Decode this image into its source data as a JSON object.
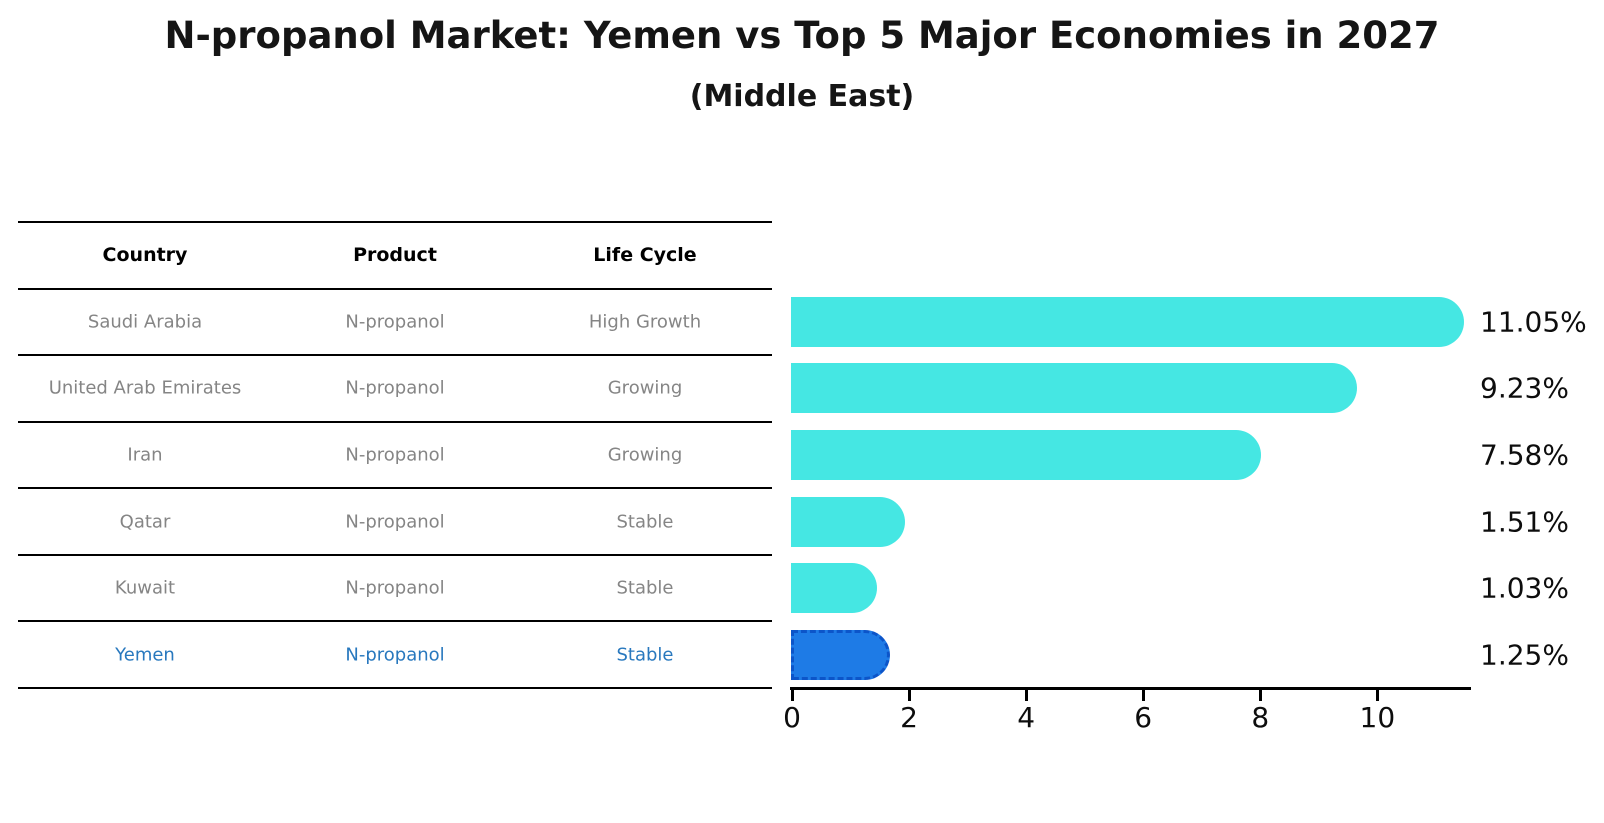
{
  "title": "N-propanol Market: Yemen vs Top 5 Major Economies in 2027",
  "subtitle": "(Middle East)",
  "table": {
    "headers": [
      "Country",
      "Product",
      "Life Cycle"
    ],
    "rows": [
      {
        "country": "Saudi Arabia",
        "product": "N-propanol",
        "life_cycle": "High Growth",
        "highlight": false
      },
      {
        "country": "United Arab Emirates",
        "product": "N-propanol",
        "life_cycle": "Growing",
        "highlight": false
      },
      {
        "country": "Iran",
        "product": "N-propanol",
        "life_cycle": "Growing",
        "highlight": false
      },
      {
        "country": "Qatar",
        "product": "N-propanol",
        "life_cycle": "Stable",
        "highlight": false
      },
      {
        "country": "Kuwait",
        "product": "N-propanol",
        "life_cycle": "Stable",
        "highlight": false
      },
      {
        "country": "Yemen",
        "product": "N-propanol",
        "life_cycle": "Stable",
        "highlight": true
      }
    ]
  },
  "chart_data": {
    "type": "bar",
    "orientation": "horizontal",
    "title": "N-propanol Market: Yemen vs Top 5 Major Economies in 2027",
    "subtitle": "(Middle East)",
    "categories": [
      "Saudi Arabia",
      "United Arab Emirates",
      "Iran",
      "Qatar",
      "Kuwait",
      "Yemen"
    ],
    "values": [
      11.05,
      9.23,
      7.58,
      1.51,
      1.03,
      1.25
    ],
    "value_labels": [
      "11.05%",
      "9.23%",
      "7.58%",
      "1.51%",
      "1.03%",
      "1.25%"
    ],
    "xlabel": "",
    "ylabel": "",
    "xlim": [
      0,
      11.6
    ],
    "x_ticks": [
      0,
      2,
      4,
      6,
      8,
      10
    ],
    "grid": false,
    "legend": false,
    "highlight_category": "Yemen"
  },
  "colors": {
    "bar_default": "#45e7e3",
    "bar_highlight": "#1e7be6",
    "bar_highlight_border": "#0c55c9",
    "row_text": "#858585",
    "highlight_text": "#2878be",
    "axis": "#000000",
    "label_text": "#0d0d0d",
    "background": "#ffffff"
  }
}
